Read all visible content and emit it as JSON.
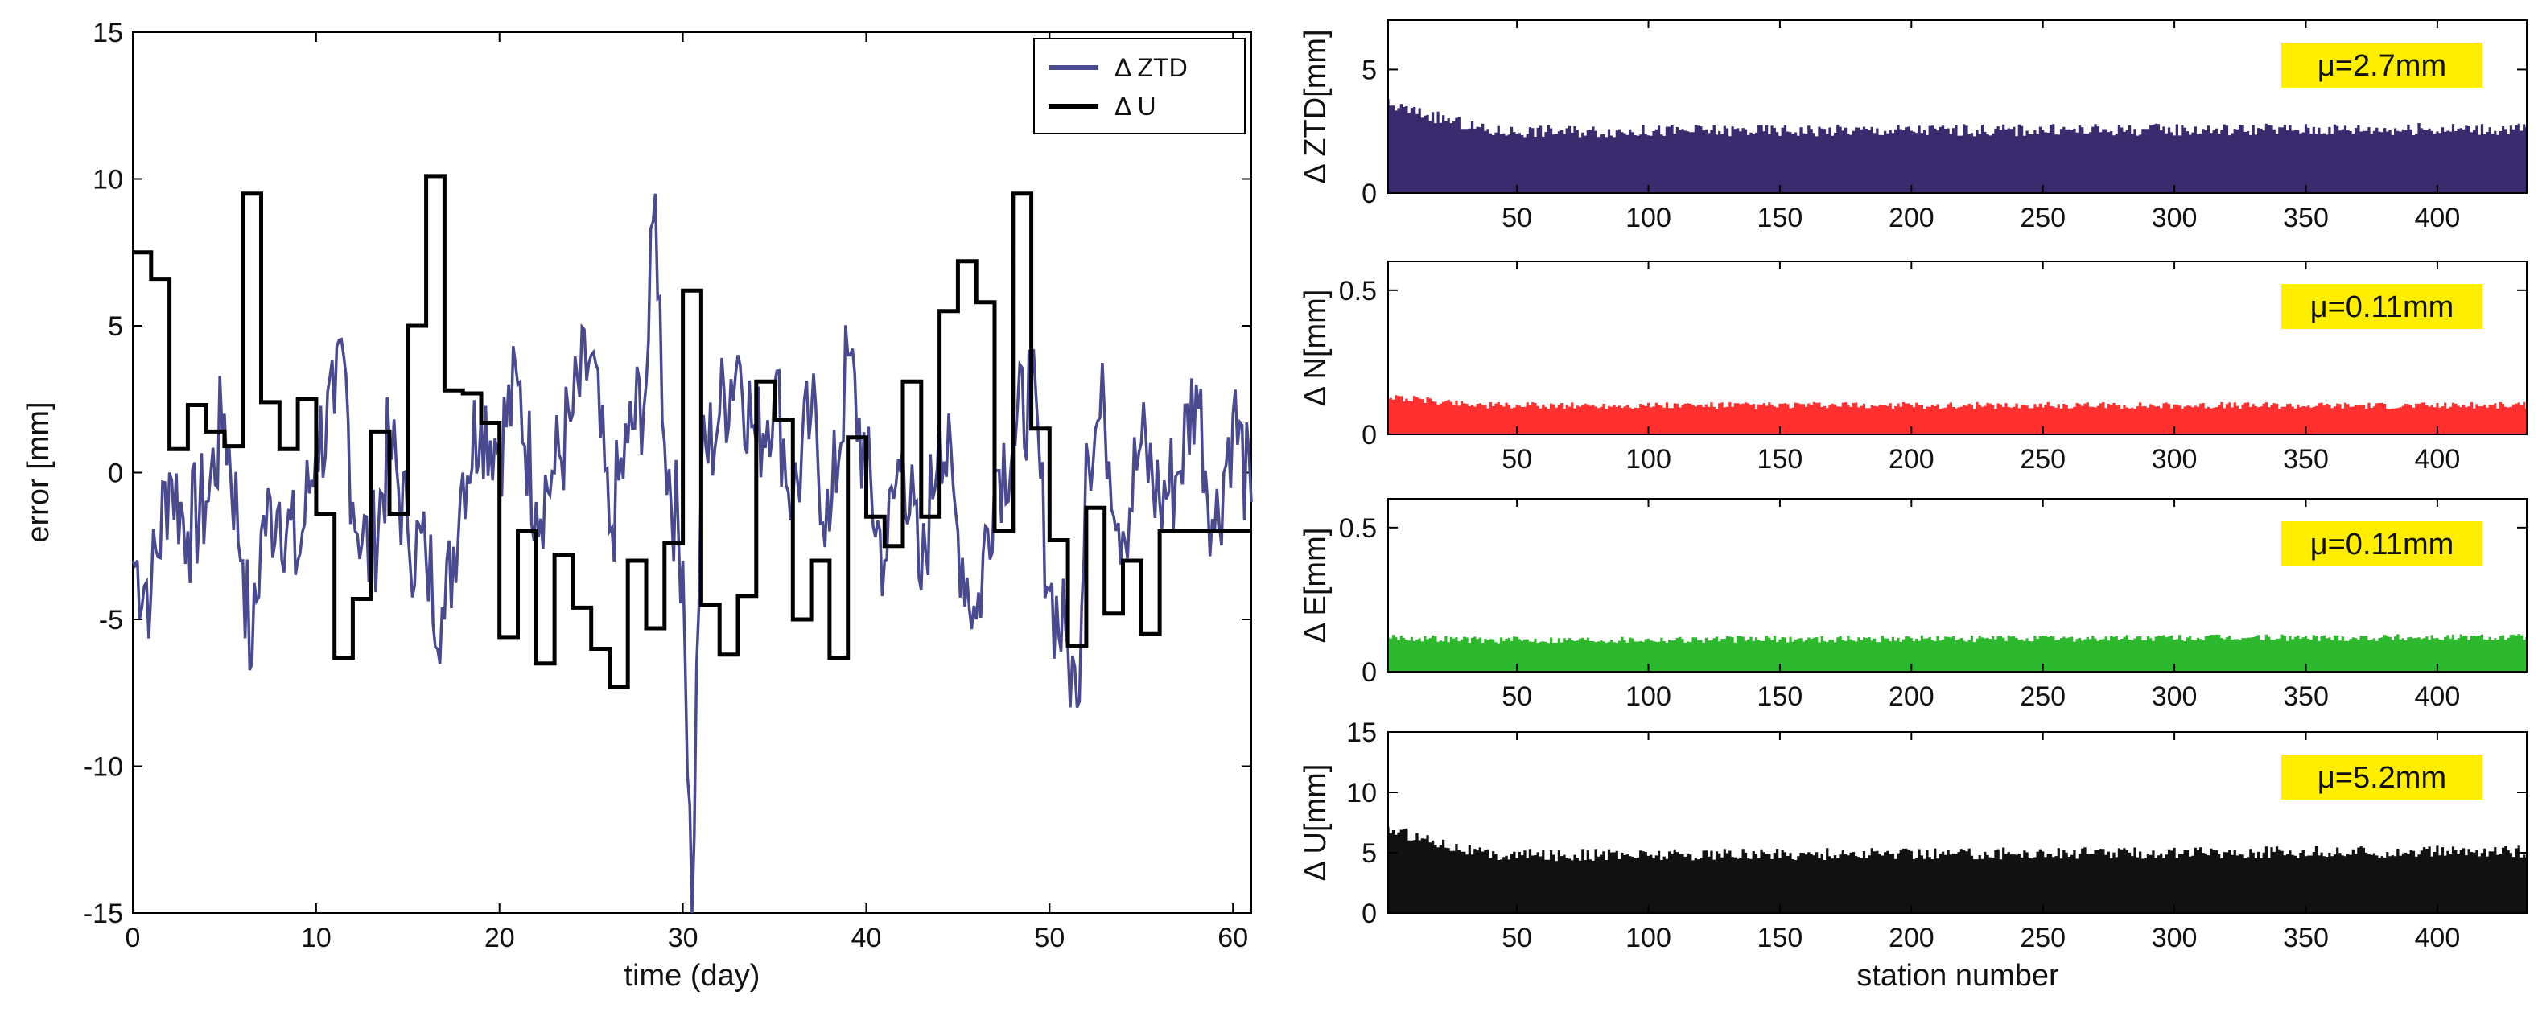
{
  "chart_data": [
    {
      "type": "line",
      "xlabel": "time (day)",
      "ylabel": "error [mm]",
      "xlim": [
        0,
        61
      ],
      "ylim": [
        -15,
        15
      ],
      "xticks": [
        "0",
        "10",
        "20",
        "30",
        "40",
        "50",
        "60"
      ],
      "yticks": [
        "-15",
        "-10",
        "-5",
        "0",
        "5",
        "10",
        "15"
      ],
      "legend": {
        "position": "top-right",
        "entries": [
          "Δ ZTD",
          "Δ U"
        ]
      },
      "series": [
        {
          "name": "Δ ZTD",
          "color": "#4a4a8f",
          "style": "noisy line (approximate key points)",
          "x": [
            0,
            1,
            2,
            3,
            4,
            5,
            6,
            6.5,
            7,
            8,
            9,
            10,
            11,
            11.5,
            12,
            13,
            14,
            15,
            16,
            17,
            18,
            19,
            20,
            21,
            22,
            23,
            24,
            25,
            26,
            27,
            28,
            28.5,
            29,
            30,
            30.5,
            31,
            32,
            33,
            34,
            35,
            36,
            37,
            38,
            39,
            40,
            41,
            42,
            43,
            44,
            45,
            46,
            47,
            48,
            49,
            50,
            51,
            51.5,
            52,
            53,
            54,
            55,
            56,
            57,
            58,
            59,
            60,
            61
          ],
          "y": [
            -3,
            -4,
            0,
            -2,
            -1,
            2,
            -3,
            -6.5,
            -2,
            -1,
            -3,
            1,
            2,
            4,
            -1,
            -3,
            1,
            -2,
            -3,
            -5,
            0,
            2,
            1,
            3,
            -1,
            0,
            2,
            4,
            -2,
            1,
            3,
            9.5,
            1,
            -3,
            -15,
            0,
            2,
            4,
            1,
            3,
            -1,
            2,
            -2,
            4,
            0,
            -3,
            1,
            -4,
            2,
            -2,
            -5,
            0,
            1,
            3,
            -4,
            -6,
            -8,
            1,
            2,
            -2,
            1,
            -1,
            0,
            3,
            -2,
            2,
            -1
          ]
        },
        {
          "name": "Δ U",
          "color": "#000000",
          "style": "step",
          "x": [
            0,
            1,
            2,
            3,
            4,
            5,
            6,
            7,
            8,
            9,
            10,
            11,
            12,
            13,
            14,
            15,
            16,
            17,
            18,
            19,
            20,
            21,
            22,
            23,
            24,
            25,
            26,
            27,
            28,
            29,
            30,
            31,
            32,
            33,
            34,
            35,
            36,
            37,
            38,
            39,
            40,
            41,
            42,
            43,
            44,
            45,
            46,
            47,
            48,
            49,
            50,
            51,
            52,
            53,
            54,
            55,
            56,
            57,
            58,
            59,
            60,
            61
          ],
          "y": [
            7.5,
            6.6,
            0.8,
            2.3,
            1.4,
            0.9,
            9.5,
            2.4,
            0.8,
            2.5,
            -1.4,
            -6.3,
            -4.3,
            1.4,
            -1.4,
            5.0,
            10.1,
            2.8,
            2.7,
            1.7,
            -5.6,
            -2.0,
            -6.5,
            -2.8,
            -4.6,
            -6.0,
            -7.3,
            -3.0,
            -5.3,
            -2.4,
            6.2,
            -4.5,
            -6.2,
            -4.2,
            3.1,
            1.8,
            -5.0,
            -3.0,
            -6.3,
            1.2,
            -1.5,
            -2.5,
            3.1,
            -1.5,
            5.5,
            7.2,
            5.8,
            -2.0,
            9.5,
            1.5,
            -2.3,
            -5.9,
            -1.2,
            -4.8,
            -3.0,
            -5.5,
            -2.0,
            -2.0,
            -2.0,
            -2.0,
            -2.0,
            -2.0
          ]
        }
      ]
    },
    {
      "type": "bar",
      "ylabel": "Δ ZTD[mm]",
      "xlim": [
        1,
        434
      ],
      "ylim": [
        0,
        7
      ],
      "xticks": [
        "50",
        "100",
        "150",
        "200",
        "250",
        "300",
        "350",
        "400"
      ],
      "yticks": [
        "0",
        "5"
      ],
      "color": "#3a2a6e",
      "mean_label": "μ=2.7mm",
      "mean": 2.7,
      "profile": {
        "start_value": 3.6,
        "plateau_value": 2.5,
        "end_value": 2.6,
        "noise": 0.25
      }
    },
    {
      "type": "bar",
      "ylabel": "Δ N[mm]",
      "xlim": [
        1,
        434
      ],
      "ylim": [
        0,
        0.6
      ],
      "xticks": [
        "50",
        "100",
        "150",
        "200",
        "250",
        "300",
        "350",
        "400"
      ],
      "yticks": [
        "0",
        "0.5"
      ],
      "color": "#ff3030",
      "mean_label": "μ=0.11mm",
      "mean": 0.11,
      "profile": {
        "start_value": 0.13,
        "plateau_value": 0.1,
        "end_value": 0.1,
        "noise": 0.012
      }
    },
    {
      "type": "bar",
      "ylabel": "Δ E[mm]",
      "xlim": [
        1,
        434
      ],
      "ylim": [
        0,
        0.6
      ],
      "xticks": [
        "50",
        "100",
        "150",
        "200",
        "250",
        "300",
        "350",
        "400"
      ],
      "yticks": [
        "0",
        "0.5"
      ],
      "color": "#2db82d",
      "mean_label": "μ=0.11mm",
      "mean": 0.11,
      "profile": {
        "start_value": 0.12,
        "plateau_value": 0.11,
        "end_value": 0.12,
        "noise": 0.012
      }
    },
    {
      "type": "bar",
      "xlabel": "station number",
      "ylabel": "Δ U[mm]",
      "xlim": [
        1,
        434
      ],
      "ylim": [
        0,
        15
      ],
      "xticks": [
        "50",
        "100",
        "150",
        "200",
        "250",
        "300",
        "350",
        "400"
      ],
      "yticks": [
        "0",
        "5",
        "10",
        "15"
      ],
      "color": "#111111",
      "mean_label": "μ=5.2mm",
      "mean": 5.2,
      "profile": {
        "start_value": 7.0,
        "plateau_value": 4.8,
        "end_value": 5.1,
        "noise": 0.5
      }
    }
  ],
  "colors": {
    "badge_background": "#ffee00",
    "axis": "#000000"
  }
}
